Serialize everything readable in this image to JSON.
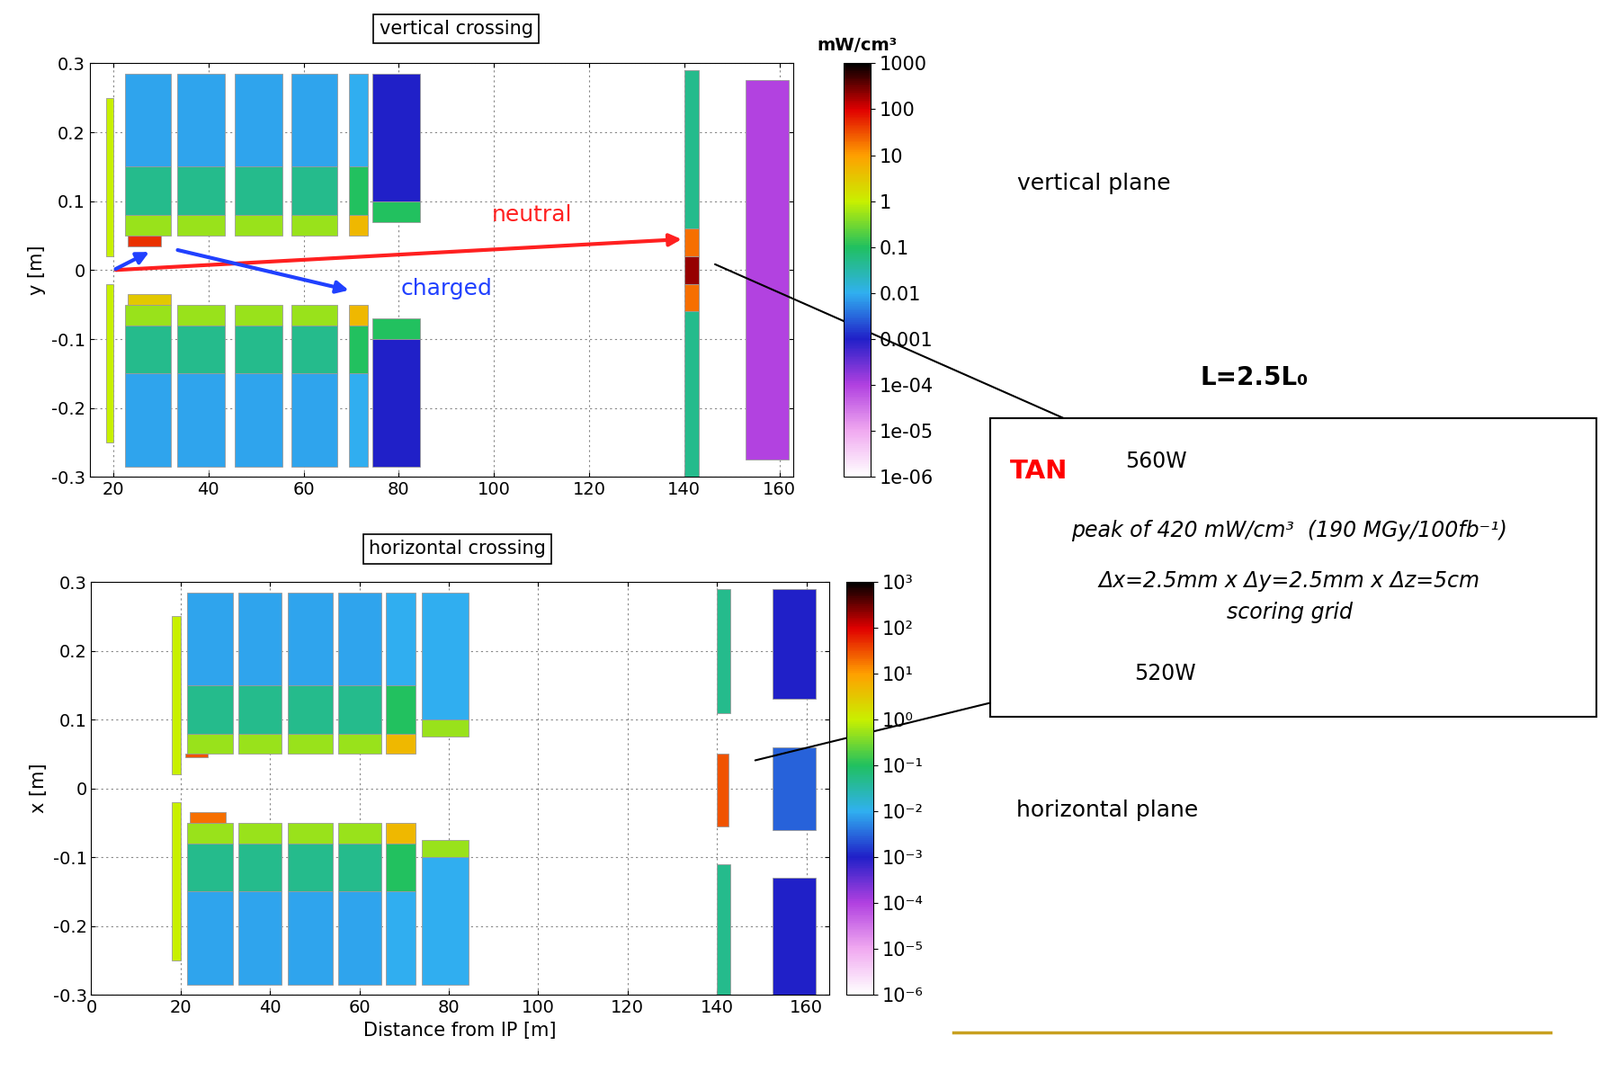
{
  "chart_data": [
    {
      "type": "heatmap",
      "title": "vertical crossing",
      "ylabel": "y [m]",
      "xlim": [
        15,
        163
      ],
      "xticks": [
        20,
        40,
        60,
        80,
        100,
        120,
        140,
        160
      ],
      "ylim": [
        -0.3,
        0.3
      ],
      "yticks": [
        -0.3,
        -0.2,
        -0.1,
        0,
        0.1,
        0.2,
        0.3
      ],
      "grid": true,
      "colorbar_title": "mW/cm³",
      "colorbar_range": [
        1e-06,
        1000
      ],
      "colorbar_ticks": [
        1000,
        100,
        10,
        1,
        0.1,
        0.01,
        0.001,
        {
          "value": 0.0001,
          "label": "1e-04"
        },
        {
          "value": 1e-05,
          "label": "1e-05"
        },
        {
          "value": 1e-06,
          "label": "1e-06"
        }
      ],
      "annotations": {
        "neutral": "neutral",
        "charged": "charged"
      },
      "cells": [
        {
          "x": [
            18.5,
            20
          ],
          "y": [
            0.02,
            0.25
          ],
          "value": 1
        },
        {
          "x": [
            18.5,
            20
          ],
          "y": [
            -0.25,
            -0.02
          ],
          "value": 1
        },
        {
          "x": [
            22.5,
            32
          ],
          "y": [
            0.05,
            0.08
          ],
          "value": 0.5
        },
        {
          "x": [
            22.5,
            32
          ],
          "y": [
            0.08,
            0.15
          ],
          "value": 0.05
        },
        {
          "x": [
            22.5,
            32
          ],
          "y": [
            0.15,
            0.285
          ],
          "value": 0.008
        },
        {
          "x": [
            22.5,
            32
          ],
          "y": [
            -0.08,
            -0.05
          ],
          "value": 0.5
        },
        {
          "x": [
            22.5,
            32
          ],
          "y": [
            -0.15,
            -0.08
          ],
          "value": 0.05
        },
        {
          "x": [
            22.5,
            32
          ],
          "y": [
            -0.285,
            -0.15
          ],
          "value": 0.008
        },
        {
          "x": [
            33.5,
            43.5
          ],
          "y": [
            0.05,
            0.08
          ],
          "value": 0.5
        },
        {
          "x": [
            33.5,
            43.5
          ],
          "y": [
            0.08,
            0.15
          ],
          "value": 0.05
        },
        {
          "x": [
            33.5,
            43.5
          ],
          "y": [
            0.15,
            0.285
          ],
          "value": 0.008
        },
        {
          "x": [
            33.5,
            43.5
          ],
          "y": [
            -0.08,
            -0.05
          ],
          "value": 0.5
        },
        {
          "x": [
            33.5,
            43.5
          ],
          "y": [
            -0.15,
            -0.08
          ],
          "value": 0.05
        },
        {
          "x": [
            33.5,
            43.5
          ],
          "y": [
            -0.285,
            -0.15
          ],
          "value": 0.008
        },
        {
          "x": [
            45.5,
            55.5
          ],
          "y": [
            0.05,
            0.08
          ],
          "value": 0.5
        },
        {
          "x": [
            45.5,
            55.5
          ],
          "y": [
            0.08,
            0.15
          ],
          "value": 0.05
        },
        {
          "x": [
            45.5,
            55.5
          ],
          "y": [
            0.15,
            0.285
          ],
          "value": 0.008
        },
        {
          "x": [
            45.5,
            55.5
          ],
          "y": [
            -0.08,
            -0.05
          ],
          "value": 0.5
        },
        {
          "x": [
            45.5,
            55.5
          ],
          "y": [
            -0.15,
            -0.08
          ],
          "value": 0.05
        },
        {
          "x": [
            45.5,
            55.5
          ],
          "y": [
            -0.285,
            -0.15
          ],
          "value": 0.008
        },
        {
          "x": [
            57.5,
            67
          ],
          "y": [
            0.05,
            0.08
          ],
          "value": 0.5
        },
        {
          "x": [
            57.5,
            67
          ],
          "y": [
            0.08,
            0.15
          ],
          "value": 0.05
        },
        {
          "x": [
            57.5,
            67
          ],
          "y": [
            0.15,
            0.285
          ],
          "value": 0.008
        },
        {
          "x": [
            57.5,
            67
          ],
          "y": [
            -0.08,
            -0.05
          ],
          "value": 0.5
        },
        {
          "x": [
            57.5,
            67
          ],
          "y": [
            -0.15,
            -0.08
          ],
          "value": 0.05
        },
        {
          "x": [
            57.5,
            67
          ],
          "y": [
            -0.285,
            -0.15
          ],
          "value": 0.008
        },
        {
          "x": [
            23,
            30
          ],
          "y": [
            0.035,
            0.05
          ],
          "value": 50
        },
        {
          "x": [
            23,
            32
          ],
          "y": [
            -0.05,
            -0.035
          ],
          "value": 3
        },
        {
          "x": [
            69.5,
            73.5
          ],
          "y": [
            0.05,
            0.08
          ],
          "value": 5
        },
        {
          "x": [
            69.5,
            73.5
          ],
          "y": [
            0.08,
            0.15
          ],
          "value": 0.1
        },
        {
          "x": [
            69.5,
            73.5
          ],
          "y": [
            0.15,
            0.285
          ],
          "value": 0.01
        },
        {
          "x": [
            69.5,
            73.5
          ],
          "y": [
            -0.08,
            -0.05
          ],
          "value": 5
        },
        {
          "x": [
            69.5,
            73.5
          ],
          "y": [
            -0.15,
            -0.08
          ],
          "value": 0.1
        },
        {
          "x": [
            69.5,
            73.5
          ],
          "y": [
            -0.285,
            -0.15
          ],
          "value": 0.01
        },
        {
          "x": [
            74.5,
            84.5
          ],
          "y": [
            0.07,
            0.1
          ],
          "value": 0.1
        },
        {
          "x": [
            74.5,
            84.5
          ],
          "y": [
            0.1,
            0.285
          ],
          "value": 0.001
        },
        {
          "x": [
            74.5,
            84.5
          ],
          "y": [
            -0.1,
            -0.07
          ],
          "value": 0.1
        },
        {
          "x": [
            74.5,
            84.5
          ],
          "y": [
            -0.285,
            -0.1
          ],
          "value": 0.001
        },
        {
          "x": [
            140,
            143
          ],
          "y": [
            -0.02,
            0.02
          ],
          "value": 200
        },
        {
          "x": [
            140,
            143
          ],
          "y": [
            0.02,
            0.06
          ],
          "value": 20
        },
        {
          "x": [
            140,
            143
          ],
          "y": [
            -0.06,
            -0.02
          ],
          "value": 20
        },
        {
          "x": [
            140,
            143
          ],
          "y": [
            0.06,
            0.29
          ],
          "value": 0.05
        },
        {
          "x": [
            140,
            143
          ],
          "y": [
            -0.3,
            -0.06
          ],
          "value": 0.05
        },
        {
          "x": [
            153,
            162
          ],
          "y": [
            -0.275,
            0.275
          ],
          "value": 0.0001
        }
      ]
    },
    {
      "type": "heatmap",
      "title": "horizontal crossing",
      "ylabel": "x [m]",
      "xlabel": "Distance from IP [m]",
      "xlim": [
        0,
        165
      ],
      "xticks": [
        0,
        20,
        40,
        60,
        80,
        100,
        120,
        140,
        160
      ],
      "ylim": [
        -0.3,
        0.3
      ],
      "yticks": [
        -0.3,
        -0.2,
        -0.1,
        0,
        0.1,
        0.2,
        0.3
      ],
      "grid": true,
      "colorbar_range": [
        1e-06,
        1000
      ],
      "colorbar_ticks": [
        {
          "value": 1000,
          "label": "10³"
        },
        {
          "value": 100,
          "label": "10²"
        },
        {
          "value": 10,
          "label": "10¹"
        },
        {
          "value": 1,
          "label": "10⁰"
        },
        {
          "value": 0.1,
          "label": "10⁻¹"
        },
        {
          "value": 0.01,
          "label": "10⁻²"
        },
        {
          "value": 0.001,
          "label": "10⁻³"
        },
        {
          "value": 0.0001,
          "label": "10⁻⁴"
        },
        {
          "value": 1e-05,
          "label": "10⁻⁵"
        },
        {
          "value": 1e-06,
          "label": "10⁻⁶"
        }
      ],
      "cells": [
        {
          "x": [
            18,
            20
          ],
          "y": [
            0.02,
            0.25
          ],
          "value": 1
        },
        {
          "x": [
            18,
            20
          ],
          "y": [
            -0.25,
            -0.02
          ],
          "value": 1
        },
        {
          "x": [
            21.5,
            31.8
          ],
          "y": [
            0.05,
            0.08
          ],
          "value": 0.5
        },
        {
          "x": [
            21.5,
            31.8
          ],
          "y": [
            0.08,
            0.15
          ],
          "value": 0.05
        },
        {
          "x": [
            21.5,
            31.8
          ],
          "y": [
            0.15,
            0.285
          ],
          "value": 0.008
        },
        {
          "x": [
            21.5,
            31.8
          ],
          "y": [
            -0.08,
            -0.05
          ],
          "value": 0.5
        },
        {
          "x": [
            21.5,
            31.8
          ],
          "y": [
            -0.15,
            -0.08
          ],
          "value": 0.05
        },
        {
          "x": [
            21.5,
            31.8
          ],
          "y": [
            -0.285,
            -0.15
          ],
          "value": 0.008
        },
        {
          "x": [
            33,
            42.6
          ],
          "y": [
            0.05,
            0.08
          ],
          "value": 0.5
        },
        {
          "x": [
            33,
            42.6
          ],
          "y": [
            0.08,
            0.15
          ],
          "value": 0.05
        },
        {
          "x": [
            33,
            42.6
          ],
          "y": [
            0.15,
            0.285
          ],
          "value": 0.008
        },
        {
          "x": [
            33,
            42.6
          ],
          "y": [
            -0.08,
            -0.05
          ],
          "value": 0.5
        },
        {
          "x": [
            33,
            42.6
          ],
          "y": [
            -0.15,
            -0.08
          ],
          "value": 0.05
        },
        {
          "x": [
            33,
            42.6
          ],
          "y": [
            -0.285,
            -0.15
          ],
          "value": 0.008
        },
        {
          "x": [
            44,
            54
          ],
          "y": [
            0.05,
            0.08
          ],
          "value": 0.5
        },
        {
          "x": [
            44,
            54
          ],
          "y": [
            0.08,
            0.15
          ],
          "value": 0.05
        },
        {
          "x": [
            44,
            54
          ],
          "y": [
            0.15,
            0.285
          ],
          "value": 0.008
        },
        {
          "x": [
            44,
            54
          ],
          "y": [
            -0.08,
            -0.05
          ],
          "value": 0.5
        },
        {
          "x": [
            44,
            54
          ],
          "y": [
            -0.15,
            -0.08
          ],
          "value": 0.05
        },
        {
          "x": [
            44,
            54
          ],
          "y": [
            -0.285,
            -0.15
          ],
          "value": 0.008
        },
        {
          "x": [
            55.3,
            65
          ],
          "y": [
            0.05,
            0.08
          ],
          "value": 0.5
        },
        {
          "x": [
            55.3,
            65
          ],
          "y": [
            0.08,
            0.15
          ],
          "value": 0.05
        },
        {
          "x": [
            55.3,
            65
          ],
          "y": [
            0.15,
            0.285
          ],
          "value": 0.008
        },
        {
          "x": [
            55.3,
            65
          ],
          "y": [
            -0.08,
            -0.05
          ],
          "value": 0.5
        },
        {
          "x": [
            55.3,
            65
          ],
          "y": [
            -0.15,
            -0.08
          ],
          "value": 0.05
        },
        {
          "x": [
            55.3,
            65
          ],
          "y": [
            -0.285,
            -0.15
          ],
          "value": 0.008
        },
        {
          "x": [
            21,
            26
          ],
          "y": [
            0.045,
            0.05
          ],
          "value": 30
        },
        {
          "x": [
            22,
            30
          ],
          "y": [
            -0.05,
            -0.035
          ],
          "value": 20
        },
        {
          "x": [
            66,
            72.5
          ],
          "y": [
            0.05,
            0.08
          ],
          "value": 5
        },
        {
          "x": [
            66,
            72.5
          ],
          "y": [
            0.08,
            0.15
          ],
          "value": 0.1
        },
        {
          "x": [
            66,
            72.5
          ],
          "y": [
            0.15,
            0.285
          ],
          "value": 0.01
        },
        {
          "x": [
            66,
            72.5
          ],
          "y": [
            -0.08,
            -0.05
          ],
          "value": 5
        },
        {
          "x": [
            66,
            72.5
          ],
          "y": [
            -0.15,
            -0.08
          ],
          "value": 0.1
        },
        {
          "x": [
            66,
            72.5
          ],
          "y": [
            -0.285,
            -0.15
          ],
          "value": 0.01
        },
        {
          "x": [
            74,
            84.5
          ],
          "y": [
            0.075,
            0.1
          ],
          "value": 0.5
        },
        {
          "x": [
            74,
            84.5
          ],
          "y": [
            0.1,
            0.285
          ],
          "value": 0.01
        },
        {
          "x": [
            74,
            84.5
          ],
          "y": [
            -0.1,
            -0.075
          ],
          "value": 0.5
        },
        {
          "x": [
            74,
            84.5
          ],
          "y": [
            -0.285,
            -0.1
          ],
          "value": 0.01
        },
        {
          "x": [
            140,
            142.5
          ],
          "y": [
            -0.055,
            0.05
          ],
          "value": 30
        },
        {
          "x": [
            140,
            143
          ],
          "y": [
            0.11,
            0.29
          ],
          "value": 0.05
        },
        {
          "x": [
            140,
            143
          ],
          "y": [
            -0.3,
            -0.11
          ],
          "value": 0.05
        },
        {
          "x": [
            152.5,
            162
          ],
          "y": [
            0.13,
            0.29
          ],
          "value": 0.001
        },
        {
          "x": [
            152.5,
            162
          ],
          "y": [
            -0.06,
            0.06
          ],
          "value": 0.003
        },
        {
          "x": [
            152.5,
            162
          ],
          "y": [
            -0.3,
            -0.13
          ],
          "value": 0.001
        }
      ]
    }
  ],
  "side_texts": {
    "top_plane": "vertical plane",
    "bottom_plane": "horizontal plane",
    "luminosity": "L=2.5L₀"
  },
  "box": {
    "name": "TAN",
    "power_vertical": "560W",
    "peak": "peak of 420 mW/cm³  (190 MGy/100fb⁻¹)",
    "grid_size": "Δx=2.5mm x Δy=2.5mm x Δz=5cm",
    "grid_name": "scoring grid",
    "power_horizontal": "520W"
  }
}
